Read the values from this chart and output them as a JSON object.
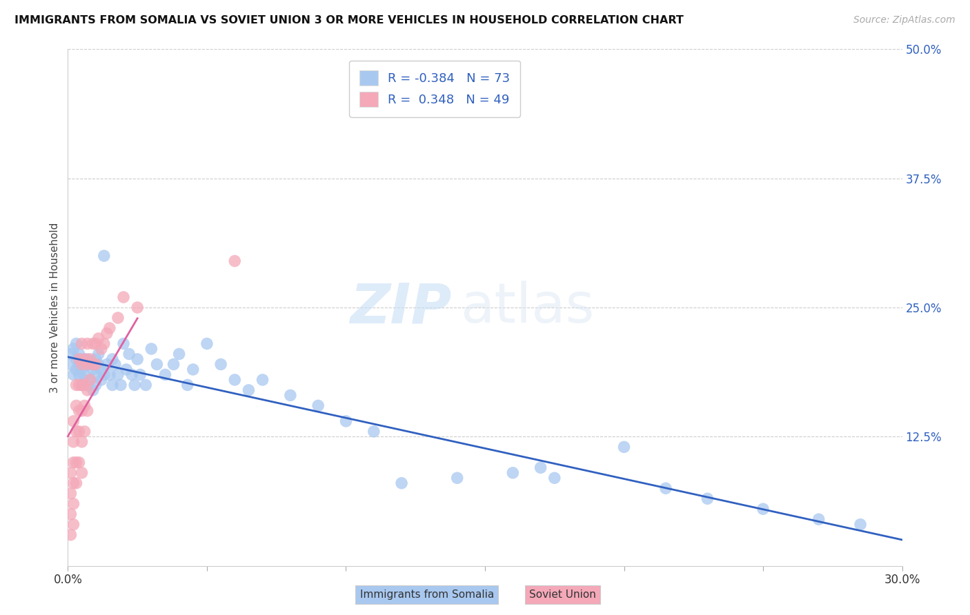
{
  "title": "IMMIGRANTS FROM SOMALIA VS SOVIET UNION 3 OR MORE VEHICLES IN HOUSEHOLD CORRELATION CHART",
  "source": "Source: ZipAtlas.com",
  "ylabel": "3 or more Vehicles in Household",
  "xlim": [
    0.0,
    0.3
  ],
  "ylim": [
    0.0,
    0.5
  ],
  "yticks_right": [
    0.125,
    0.25,
    0.375,
    0.5
  ],
  "ytick_right_labels": [
    "12.5%",
    "25.0%",
    "37.5%",
    "50.0%"
  ],
  "somalia_color": "#a8c8f0",
  "soviet_color": "#f4a8b8",
  "somalia_line_color": "#3060c0",
  "soviet_line_color": "#e060a0",
  "somalia_R": -0.384,
  "somalia_N": 73,
  "soviet_R": 0.348,
  "soviet_N": 49,
  "legend_somalia": "Immigrants from Somalia",
  "legend_soviet": "Soviet Union",
  "watermark_zip": "ZIP",
  "watermark_atlas": "atlas",
  "somalia_scatter_x": [
    0.001,
    0.001,
    0.002,
    0.002,
    0.003,
    0.003,
    0.003,
    0.004,
    0.004,
    0.004,
    0.005,
    0.005,
    0.005,
    0.006,
    0.006,
    0.006,
    0.007,
    0.007,
    0.008,
    0.008,
    0.009,
    0.009,
    0.01,
    0.01,
    0.01,
    0.011,
    0.011,
    0.012,
    0.012,
    0.013,
    0.013,
    0.014,
    0.015,
    0.016,
    0.016,
    0.017,
    0.018,
    0.019,
    0.02,
    0.021,
    0.022,
    0.023,
    0.024,
    0.025,
    0.026,
    0.028,
    0.03,
    0.032,
    0.035,
    0.038,
    0.04,
    0.043,
    0.045,
    0.05,
    0.055,
    0.06,
    0.065,
    0.07,
    0.08,
    0.09,
    0.1,
    0.11,
    0.12,
    0.14,
    0.16,
    0.17,
    0.175,
    0.2,
    0.215,
    0.23,
    0.25,
    0.27,
    0.285
  ],
  "somalia_scatter_y": [
    0.195,
    0.205,
    0.185,
    0.21,
    0.19,
    0.2,
    0.215,
    0.185,
    0.195,
    0.205,
    0.175,
    0.19,
    0.2,
    0.18,
    0.195,
    0.185,
    0.2,
    0.175,
    0.195,
    0.18,
    0.19,
    0.17,
    0.2,
    0.185,
    0.175,
    0.195,
    0.205,
    0.18,
    0.19,
    0.3,
    0.185,
    0.195,
    0.185,
    0.2,
    0.175,
    0.195,
    0.185,
    0.175,
    0.215,
    0.19,
    0.205,
    0.185,
    0.175,
    0.2,
    0.185,
    0.175,
    0.21,
    0.195,
    0.185,
    0.195,
    0.205,
    0.175,
    0.19,
    0.215,
    0.195,
    0.18,
    0.17,
    0.18,
    0.165,
    0.155,
    0.14,
    0.13,
    0.08,
    0.085,
    0.09,
    0.095,
    0.085,
    0.115,
    0.075,
    0.065,
    0.055,
    0.045,
    0.04
  ],
  "soviet_scatter_x": [
    0.001,
    0.001,
    0.001,
    0.001,
    0.002,
    0.002,
    0.002,
    0.002,
    0.002,
    0.002,
    0.003,
    0.003,
    0.003,
    0.003,
    0.003,
    0.004,
    0.004,
    0.004,
    0.004,
    0.004,
    0.005,
    0.005,
    0.005,
    0.005,
    0.005,
    0.005,
    0.006,
    0.006,
    0.006,
    0.006,
    0.007,
    0.007,
    0.007,
    0.007,
    0.008,
    0.008,
    0.009,
    0.009,
    0.01,
    0.01,
    0.011,
    0.012,
    0.013,
    0.014,
    0.015,
    0.018,
    0.02,
    0.025,
    0.06
  ],
  "soviet_scatter_y": [
    0.03,
    0.05,
    0.07,
    0.09,
    0.04,
    0.06,
    0.08,
    0.1,
    0.12,
    0.14,
    0.08,
    0.1,
    0.13,
    0.155,
    0.175,
    0.1,
    0.13,
    0.15,
    0.175,
    0.2,
    0.09,
    0.12,
    0.15,
    0.175,
    0.195,
    0.215,
    0.13,
    0.155,
    0.175,
    0.2,
    0.15,
    0.17,
    0.195,
    0.215,
    0.18,
    0.2,
    0.195,
    0.215,
    0.195,
    0.215,
    0.22,
    0.21,
    0.215,
    0.225,
    0.23,
    0.24,
    0.26,
    0.25,
    0.295
  ]
}
